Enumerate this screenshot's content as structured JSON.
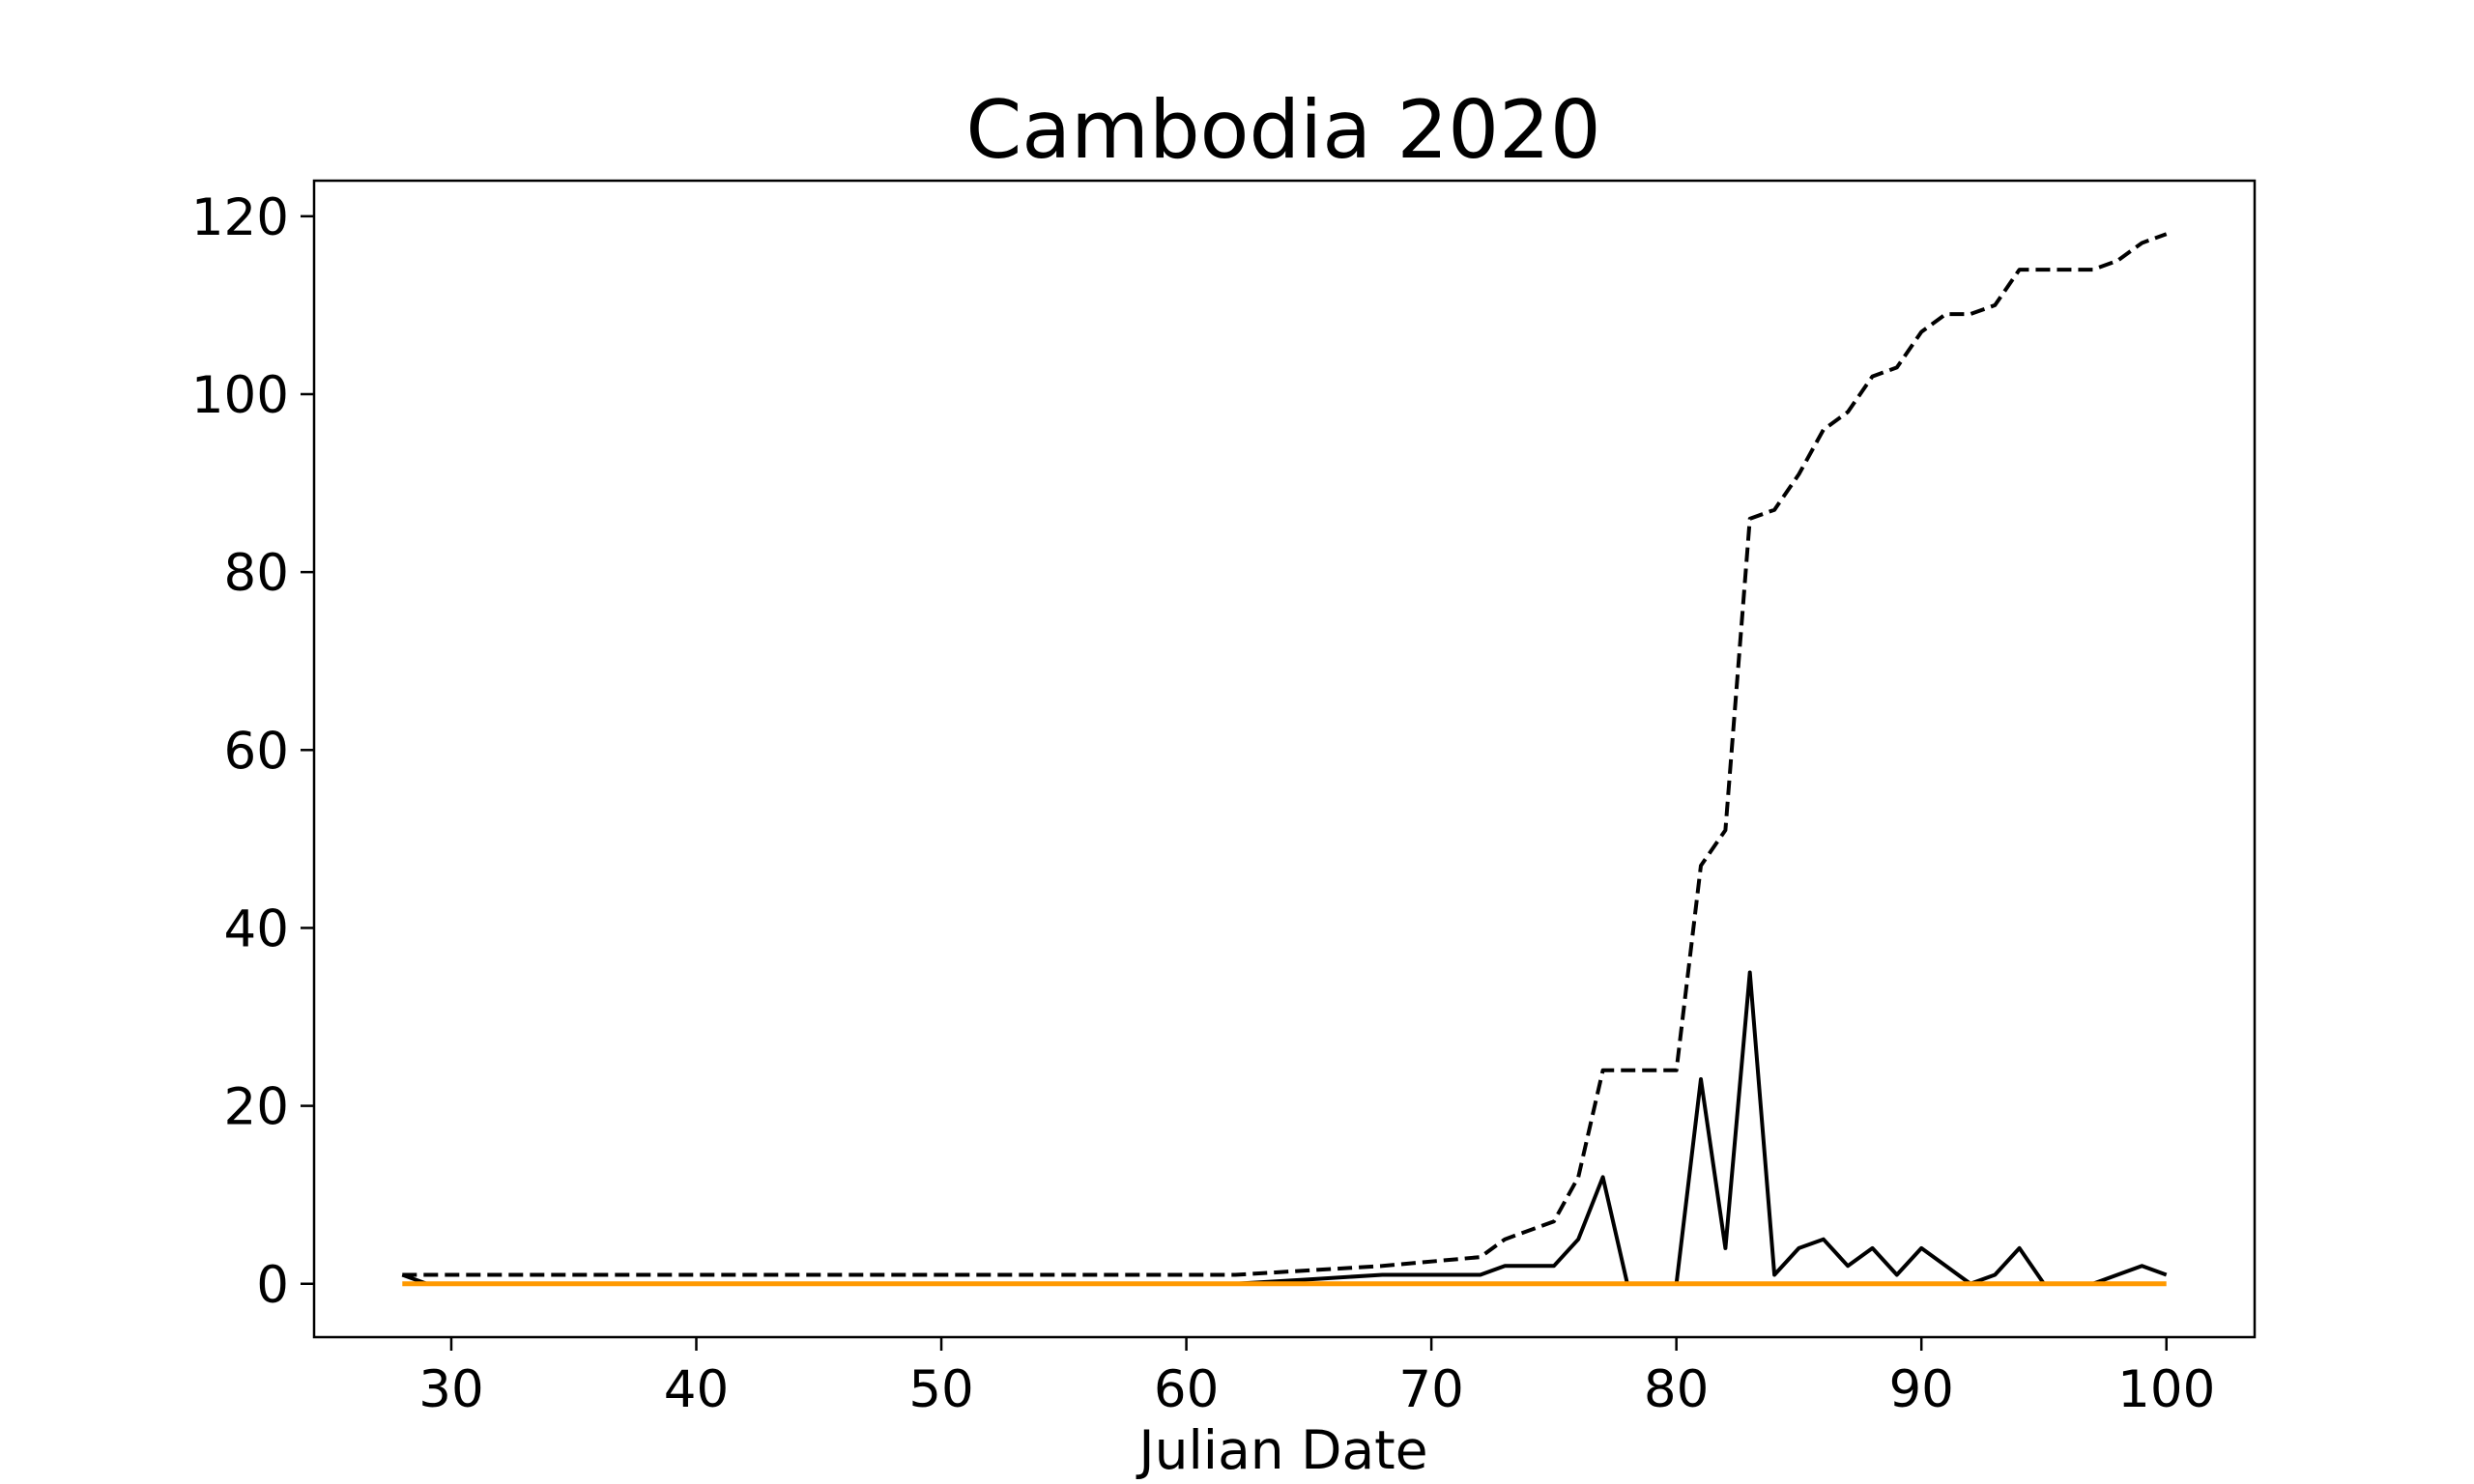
{
  "chart_data": {
    "type": "line",
    "title": "Cambodia 2020",
    "xlabel": "Julian Date",
    "ylabel": "",
    "xlim": [
      24.4,
      103.6
    ],
    "ylim": [
      -6,
      124
    ],
    "xticks": [
      30,
      40,
      50,
      60,
      70,
      80,
      90,
      100
    ],
    "yticks": [
      0,
      20,
      40,
      60,
      80,
      100,
      120
    ],
    "grid": false,
    "legend": "none",
    "series": [
      {
        "color": "#000000",
        "style": "dashed",
        "points": [
          [
            28,
            1
          ],
          [
            62,
            1
          ],
          [
            65,
            1.5
          ],
          [
            68,
            2
          ],
          [
            72,
            3
          ],
          [
            73,
            5
          ],
          [
            75,
            7
          ],
          [
            76,
            12
          ],
          [
            77,
            24
          ],
          [
            80,
            24
          ],
          [
            81,
            47
          ],
          [
            82,
            51
          ],
          [
            83,
            86
          ],
          [
            84,
            87
          ],
          [
            85,
            91
          ],
          [
            86,
            96
          ],
          [
            87,
            98
          ],
          [
            88,
            102
          ],
          [
            89,
            103
          ],
          [
            90,
            107
          ],
          [
            91,
            109
          ],
          [
            92,
            109
          ],
          [
            93,
            110
          ],
          [
            94,
            114
          ],
          [
            97,
            114
          ],
          [
            98,
            115
          ],
          [
            99,
            117
          ],
          [
            100,
            118
          ]
        ]
      },
      {
        "color": "#000000",
        "style": "solid",
        "points": [
          [
            28,
            1
          ],
          [
            29,
            0
          ],
          [
            62,
            0
          ],
          [
            65,
            0.5
          ],
          [
            68,
            1
          ],
          [
            72,
            1
          ],
          [
            73,
            2
          ],
          [
            75,
            2
          ],
          [
            76,
            5
          ],
          [
            77,
            12
          ],
          [
            78,
            0
          ],
          [
            80,
            0
          ],
          [
            81,
            23
          ],
          [
            82,
            4
          ],
          [
            83,
            35
          ],
          [
            84,
            1
          ],
          [
            85,
            4
          ],
          [
            86,
            5
          ],
          [
            87,
            2
          ],
          [
            88,
            4
          ],
          [
            89,
            1
          ],
          [
            90,
            4
          ],
          [
            91,
            2
          ],
          [
            92,
            0
          ],
          [
            93,
            1
          ],
          [
            94,
            4
          ],
          [
            95,
            0
          ],
          [
            97,
            0
          ],
          [
            98,
            1
          ],
          [
            99,
            2
          ],
          [
            100,
            1
          ]
        ]
      },
      {
        "color": "#ff9900",
        "style": "solid",
        "points": [
          [
            28,
            0
          ],
          [
            100,
            0
          ]
        ]
      }
    ]
  }
}
